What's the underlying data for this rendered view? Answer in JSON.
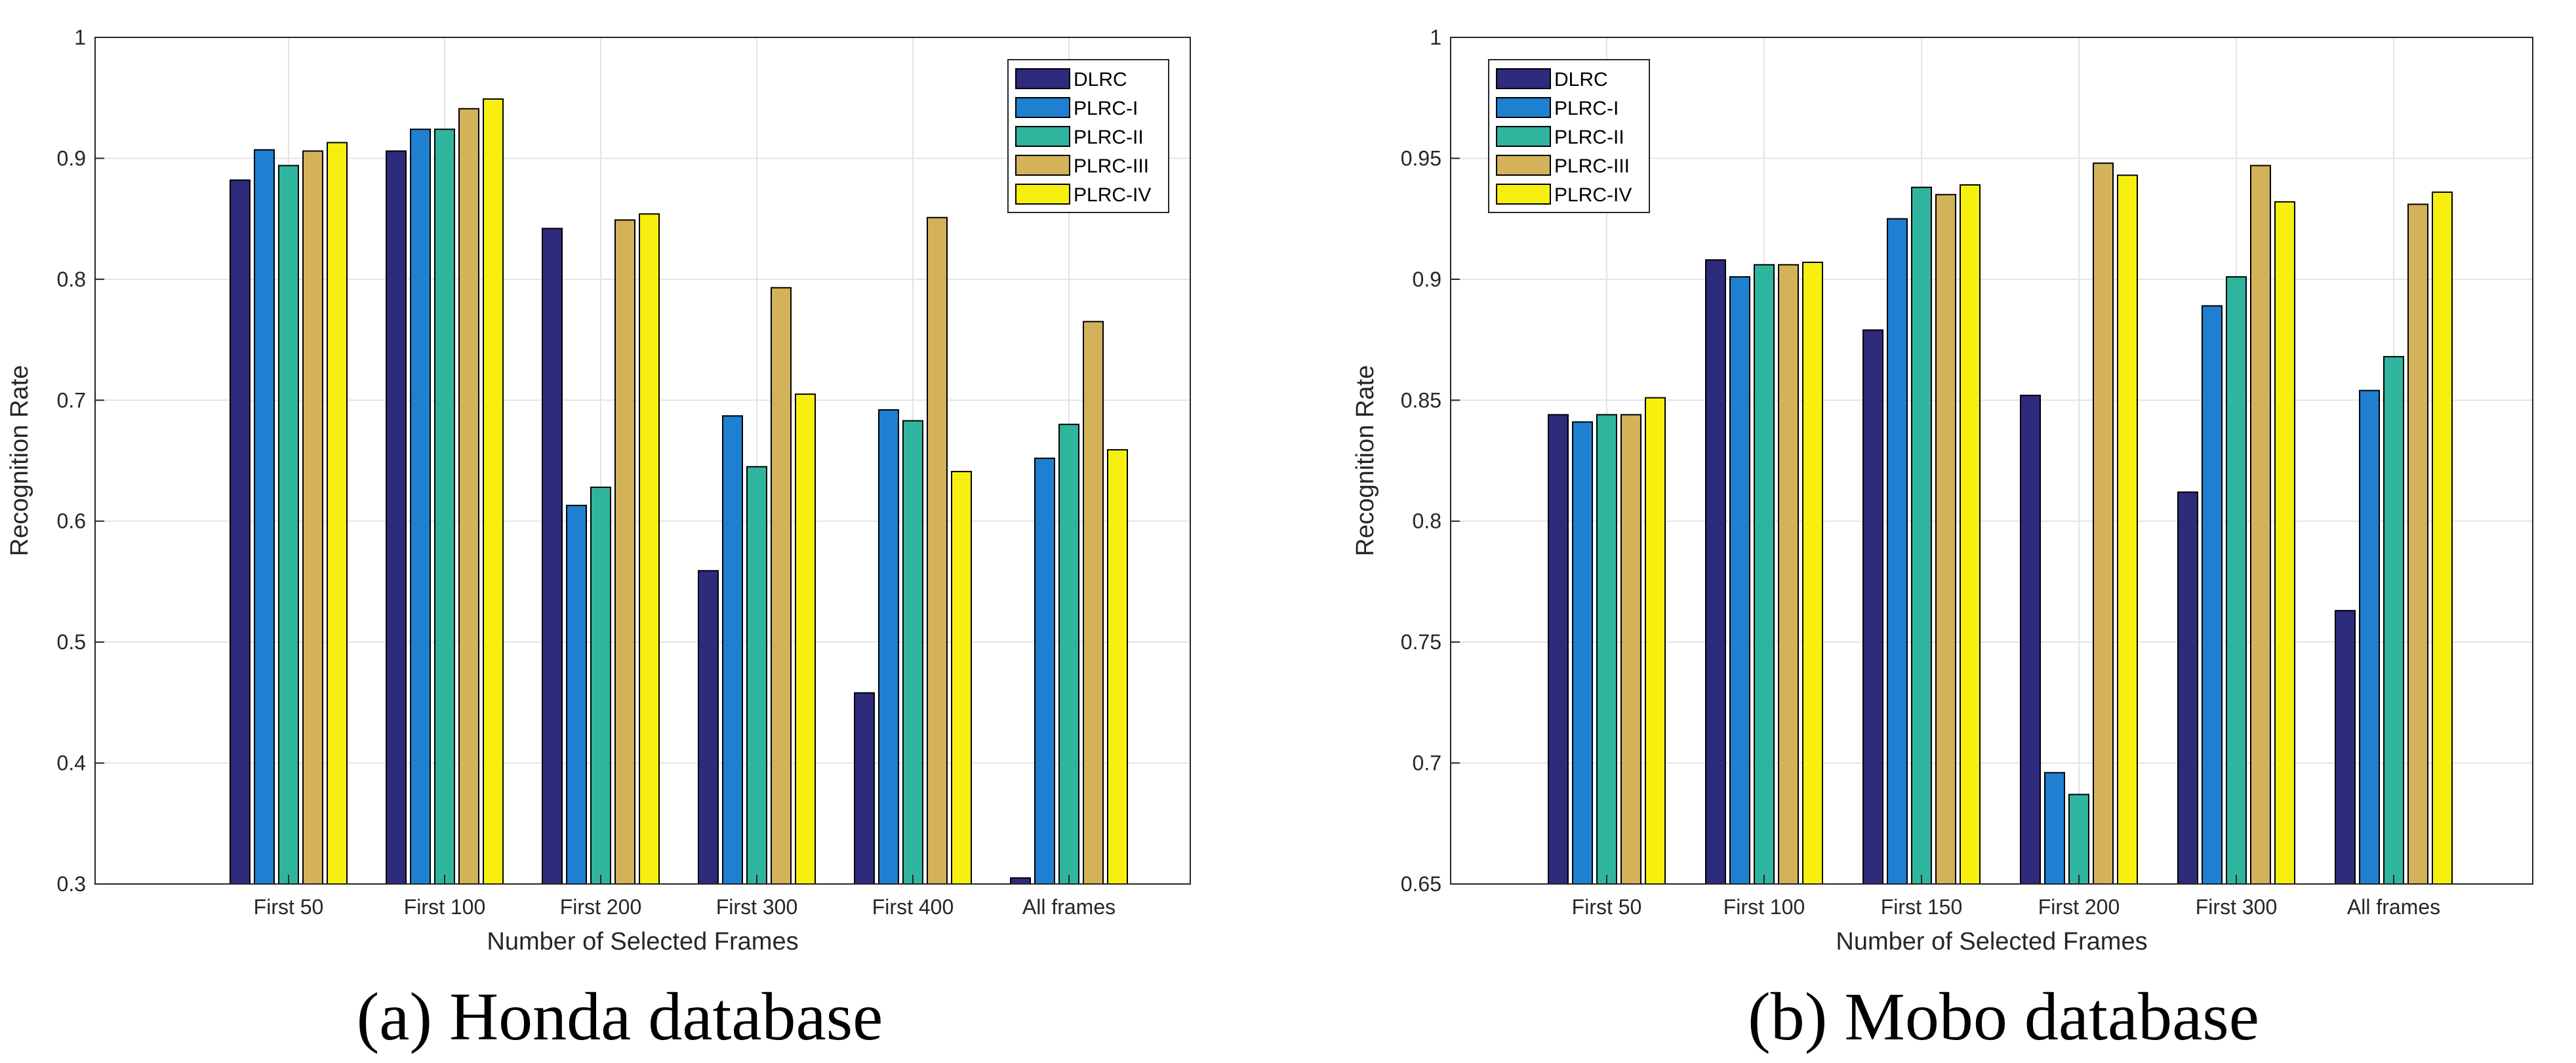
{
  "figure_captions": [
    "(a) Honda database",
    "(b) Mobo database"
  ],
  "chart_data": [
    {
      "type": "bar",
      "title": "(a) Honda database",
      "xlabel": "Number of Selected Frames",
      "ylabel": "Recognition Rate",
      "ylim": [
        0.3,
        1.0
      ],
      "yticks": [
        0.3,
        0.4,
        0.5,
        0.6,
        0.7,
        0.8,
        0.9,
        1.0
      ],
      "ytick_labels": [
        "0.3",
        "0.4",
        "0.5",
        "0.6",
        "0.7",
        "0.8",
        "0.9",
        "1"
      ],
      "grid": true,
      "legend_position": "top-right",
      "categories": [
        "First 50",
        "First 100",
        "First 200",
        "First 300",
        "First 400",
        "All frames"
      ],
      "series": [
        {
          "name": "DLRC",
          "color": "#2e2a7c",
          "values": [
            0.882,
            0.906,
            0.842,
            0.559,
            0.458,
            0.305
          ]
        },
        {
          "name": "PLRC-I",
          "color": "#1f7fd1",
          "values": [
            0.907,
            0.924,
            0.613,
            0.687,
            0.692,
            0.652
          ]
        },
        {
          "name": "PLRC-II",
          "color": "#2fb59d",
          "values": [
            0.894,
            0.924,
            0.628,
            0.645,
            0.683,
            0.68
          ]
        },
        {
          "name": "PLRC-III",
          "color": "#d4b25a",
          "values": [
            0.906,
            0.941,
            0.849,
            0.793,
            0.851,
            0.765
          ]
        },
        {
          "name": "PLRC-IV",
          "color": "#f7f00f",
          "values": [
            0.913,
            0.949,
            0.854,
            0.705,
            0.641,
            0.659
          ]
        }
      ]
    },
    {
      "type": "bar",
      "title": "(b) Mobo database",
      "xlabel": "Number of Selected Frames",
      "ylabel": "Recognition Rate",
      "ylim": [
        0.65,
        1.0
      ],
      "yticks": [
        0.65,
        0.7,
        0.75,
        0.8,
        0.85,
        0.9,
        0.95,
        1.0
      ],
      "ytick_labels": [
        "0.65",
        "0.7",
        "0.75",
        "0.8",
        "0.85",
        "0.9",
        "0.95",
        "1"
      ],
      "grid": true,
      "legend_position": "top-left",
      "categories": [
        "First 50",
        "First 100",
        "First 150",
        "First 200",
        "First 300",
        "All frames"
      ],
      "series": [
        {
          "name": "DLRC",
          "color": "#2e2a7c",
          "values": [
            0.844,
            0.908,
            0.879,
            0.852,
            0.812,
            0.763
          ]
        },
        {
          "name": "PLRC-I",
          "color": "#1f7fd1",
          "values": [
            0.841,
            0.901,
            0.925,
            0.696,
            0.889,
            0.854
          ]
        },
        {
          "name": "PLRC-II",
          "color": "#2fb59d",
          "values": [
            0.844,
            0.906,
            0.938,
            0.687,
            0.901,
            0.868
          ]
        },
        {
          "name": "PLRC-III",
          "color": "#d4b25a",
          "values": [
            0.844,
            0.906,
            0.935,
            0.948,
            0.947,
            0.931
          ]
        },
        {
          "name": "PLRC-IV",
          "color": "#f7f00f",
          "values": [
            0.851,
            0.907,
            0.939,
            0.943,
            0.932,
            0.936
          ]
        }
      ]
    }
  ]
}
